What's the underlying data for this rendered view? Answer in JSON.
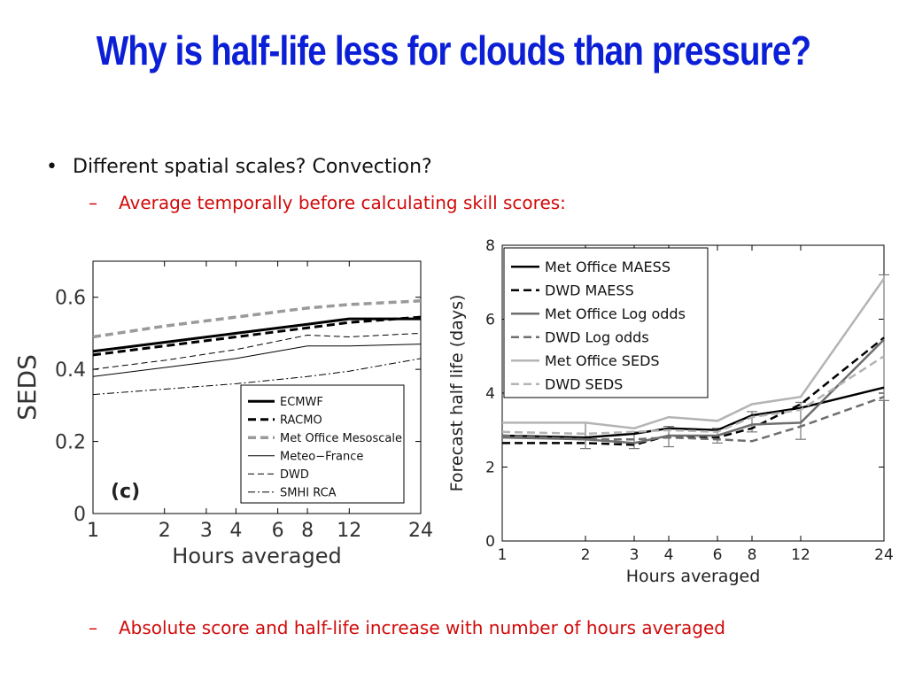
{
  "slide": {
    "title": "Why is half-life less for clouds than pressure?",
    "bullet": "Different spatial scales? Convection?",
    "sub_bullet_1": "Average temporally before calculating skill scores:",
    "sub_bullet_2": "Absolute score and half-life increase with number of hours averaged",
    "bullet_symbol": "•",
    "dash_symbol": "–",
    "colors": {
      "title": "#0b1fd6",
      "sub_bullet": "#d10a0a",
      "body": "#111111"
    }
  },
  "chart_data": [
    {
      "type": "line",
      "panel_label": "(c)",
      "title": "",
      "xlabel": "Hours averaged",
      "ylabel": "SEDS",
      "x_scale": "log",
      "xticks": [
        1,
        2,
        3,
        4,
        6,
        8,
        12,
        24
      ],
      "yticks": [
        0,
        0.2,
        0.4,
        0.6
      ],
      "ytick_labels": [
        "0",
        "0.2",
        "0.4",
        "0.6"
      ],
      "xlim": [
        1,
        24
      ],
      "ylim": [
        0,
        0.7
      ],
      "legend_position": "bottom-right",
      "series": [
        {
          "name": "ECMWF",
          "color": "#000000",
          "dash": "solid",
          "width": 3,
          "x": [
            1,
            2,
            4,
            8,
            12,
            24
          ],
          "values": [
            0.45,
            0.475,
            0.5,
            0.525,
            0.54,
            0.54
          ]
        },
        {
          "name": "RACMO",
          "color": "#000000",
          "dash": "dashed",
          "width": 3,
          "x": [
            1,
            2,
            4,
            8,
            12,
            24
          ],
          "values": [
            0.44,
            0.465,
            0.49,
            0.515,
            0.53,
            0.545
          ]
        },
        {
          "name": "Met Office Mesoscale",
          "color": "#9a9a9a",
          "dash": "dashed",
          "width": 3.5,
          "x": [
            1,
            2,
            4,
            8,
            12,
            24
          ],
          "values": [
            0.49,
            0.52,
            0.545,
            0.57,
            0.58,
            0.59
          ]
        },
        {
          "name": "Meteo−France",
          "color": "#000000",
          "dash": "solid",
          "width": 1,
          "x": [
            1,
            2,
            4,
            8,
            12,
            24
          ],
          "values": [
            0.38,
            0.405,
            0.43,
            0.465,
            0.465,
            0.47
          ]
        },
        {
          "name": "DWD",
          "color": "#000000",
          "dash": "dashed",
          "width": 1,
          "x": [
            1,
            2,
            4,
            8,
            12,
            24
          ],
          "values": [
            0.4,
            0.425,
            0.455,
            0.495,
            0.49,
            0.5
          ]
        },
        {
          "name": "SMHI RCA",
          "color": "#000000",
          "dash": "dashdot",
          "width": 1,
          "x": [
            1,
            2,
            4,
            8,
            12,
            24
          ],
          "values": [
            0.33,
            0.345,
            0.36,
            0.38,
            0.395,
            0.43
          ]
        }
      ]
    },
    {
      "type": "line",
      "title": "",
      "xlabel": "Hours averaged",
      "ylabel": "Forecast half life (days)",
      "x_scale": "log",
      "xticks": [
        1,
        2,
        3,
        4,
        6,
        8,
        12,
        24
      ],
      "yticks": [
        0,
        2,
        4,
        6,
        8
      ],
      "xlim": [
        1,
        24
      ],
      "ylim": [
        0,
        8
      ],
      "legend_position": "top-left",
      "series": [
        {
          "name": "Met Office MAESS",
          "color": "#000000",
          "dash": "solid",
          "width": 2.5,
          "x": [
            1,
            2,
            3,
            4,
            6,
            8,
            12,
            24
          ],
          "values": [
            2.85,
            2.8,
            2.9,
            3.05,
            3.0,
            3.4,
            3.6,
            4.15
          ]
        },
        {
          "name": "DWD MAESS",
          "color": "#000000",
          "dash": "dashed",
          "width": 2.5,
          "x": [
            1,
            2,
            3,
            4,
            6,
            8,
            12,
            24
          ],
          "values": [
            2.65,
            2.65,
            2.6,
            2.85,
            2.8,
            3.05,
            3.7,
            5.5
          ]
        },
        {
          "name": "Met Office Log odds",
          "color": "#6e6e6e",
          "dash": "solid",
          "width": 2.5,
          "x": [
            1,
            2,
            3,
            4,
            6,
            8,
            12,
            24
          ],
          "values": [
            2.8,
            2.75,
            2.65,
            2.85,
            2.85,
            3.15,
            3.2,
            5.45
          ]
        },
        {
          "name": "DWD Log odds",
          "color": "#6e6e6e",
          "dash": "dashed",
          "width": 2.5,
          "x": [
            1,
            2,
            3,
            4,
            6,
            8,
            12,
            24
          ],
          "values": [
            2.85,
            2.75,
            2.75,
            2.8,
            2.75,
            2.7,
            3.1,
            3.9
          ]
        },
        {
          "name": "Met Office SEDS",
          "color": "#b4b4b4",
          "dash": "solid",
          "width": 2.5,
          "x": [
            1,
            2,
            3,
            4,
            6,
            8,
            12,
            24
          ],
          "values": [
            3.2,
            3.2,
            3.05,
            3.35,
            3.25,
            3.7,
            3.9,
            7.1
          ]
        },
        {
          "name": "DWD SEDS",
          "color": "#b4b4b4",
          "dash": "dashed",
          "width": 2.5,
          "x": [
            1,
            2,
            3,
            4,
            6,
            8,
            12,
            24
          ],
          "values": [
            2.95,
            2.9,
            2.95,
            3.0,
            2.95,
            3.35,
            3.55,
            5.0
          ]
        }
      ],
      "error_bars": [
        {
          "x": 2,
          "low": 2.5,
          "high": 3.2
        },
        {
          "x": 3,
          "low": 2.5,
          "high": 2.95
        },
        {
          "x": 4,
          "low": 2.55,
          "high": 3.1
        },
        {
          "x": 6,
          "low": 2.65,
          "high": 3.05
        },
        {
          "x": 8,
          "low": 2.95,
          "high": 3.5
        },
        {
          "x": 12,
          "low": 2.75,
          "high": 3.75
        },
        {
          "x": 24,
          "low": 3.8,
          "high": 7.2
        }
      ]
    }
  ]
}
